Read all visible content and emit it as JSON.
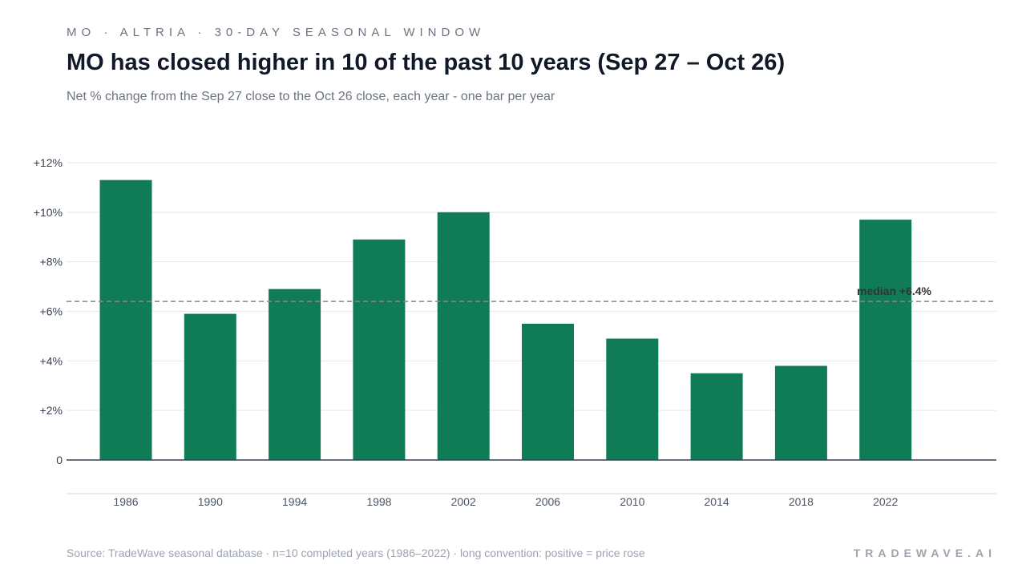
{
  "header": {
    "kicker": "MO · ALTRIA · 30-DAY SEASONAL WINDOW",
    "title": "MO has closed higher in 10 of the past 10 years (Sep 27 – Oct 26)",
    "subtitle": "Net % change from the Sep 27 close to the Oct 26 close, each year - one bar per year"
  },
  "footer": {
    "source": "Source: TradeWave seasonal database · n=10 completed years (1986–2022) · long convention: positive = price rose",
    "brand": "TRADEWAVE.AI"
  },
  "colors": {
    "bar": "#107b57",
    "median_line": "#888888",
    "grid": "#e5e7eb",
    "axis": "#374151"
  },
  "chart_data": {
    "type": "bar",
    "title": "MO has closed higher in 10 of the past 10 years (Sep 27 – Oct 26)",
    "xlabel": "",
    "ylabel": "",
    "categories": [
      "1986",
      "1990",
      "1994",
      "1998",
      "2002",
      "2006",
      "2010",
      "2014",
      "2018",
      "2022"
    ],
    "values": [
      11.3,
      5.9,
      6.9,
      8.9,
      10.0,
      5.5,
      4.9,
      3.5,
      3.8,
      9.7
    ],
    "ylim": [
      0,
      12
    ],
    "yticks": [
      {
        "value": 0,
        "label": "0"
      },
      {
        "value": 2,
        "label": "+2%"
      },
      {
        "value": 4,
        "label": "+4%"
      },
      {
        "value": 6,
        "label": "+6%"
      },
      {
        "value": 8,
        "label": "+8%"
      },
      {
        "value": 10,
        "label": "+10%"
      },
      {
        "value": 12,
        "label": "+12%"
      }
    ],
    "median": 6.4,
    "median_label": "median +6.4%",
    "grid": true
  }
}
